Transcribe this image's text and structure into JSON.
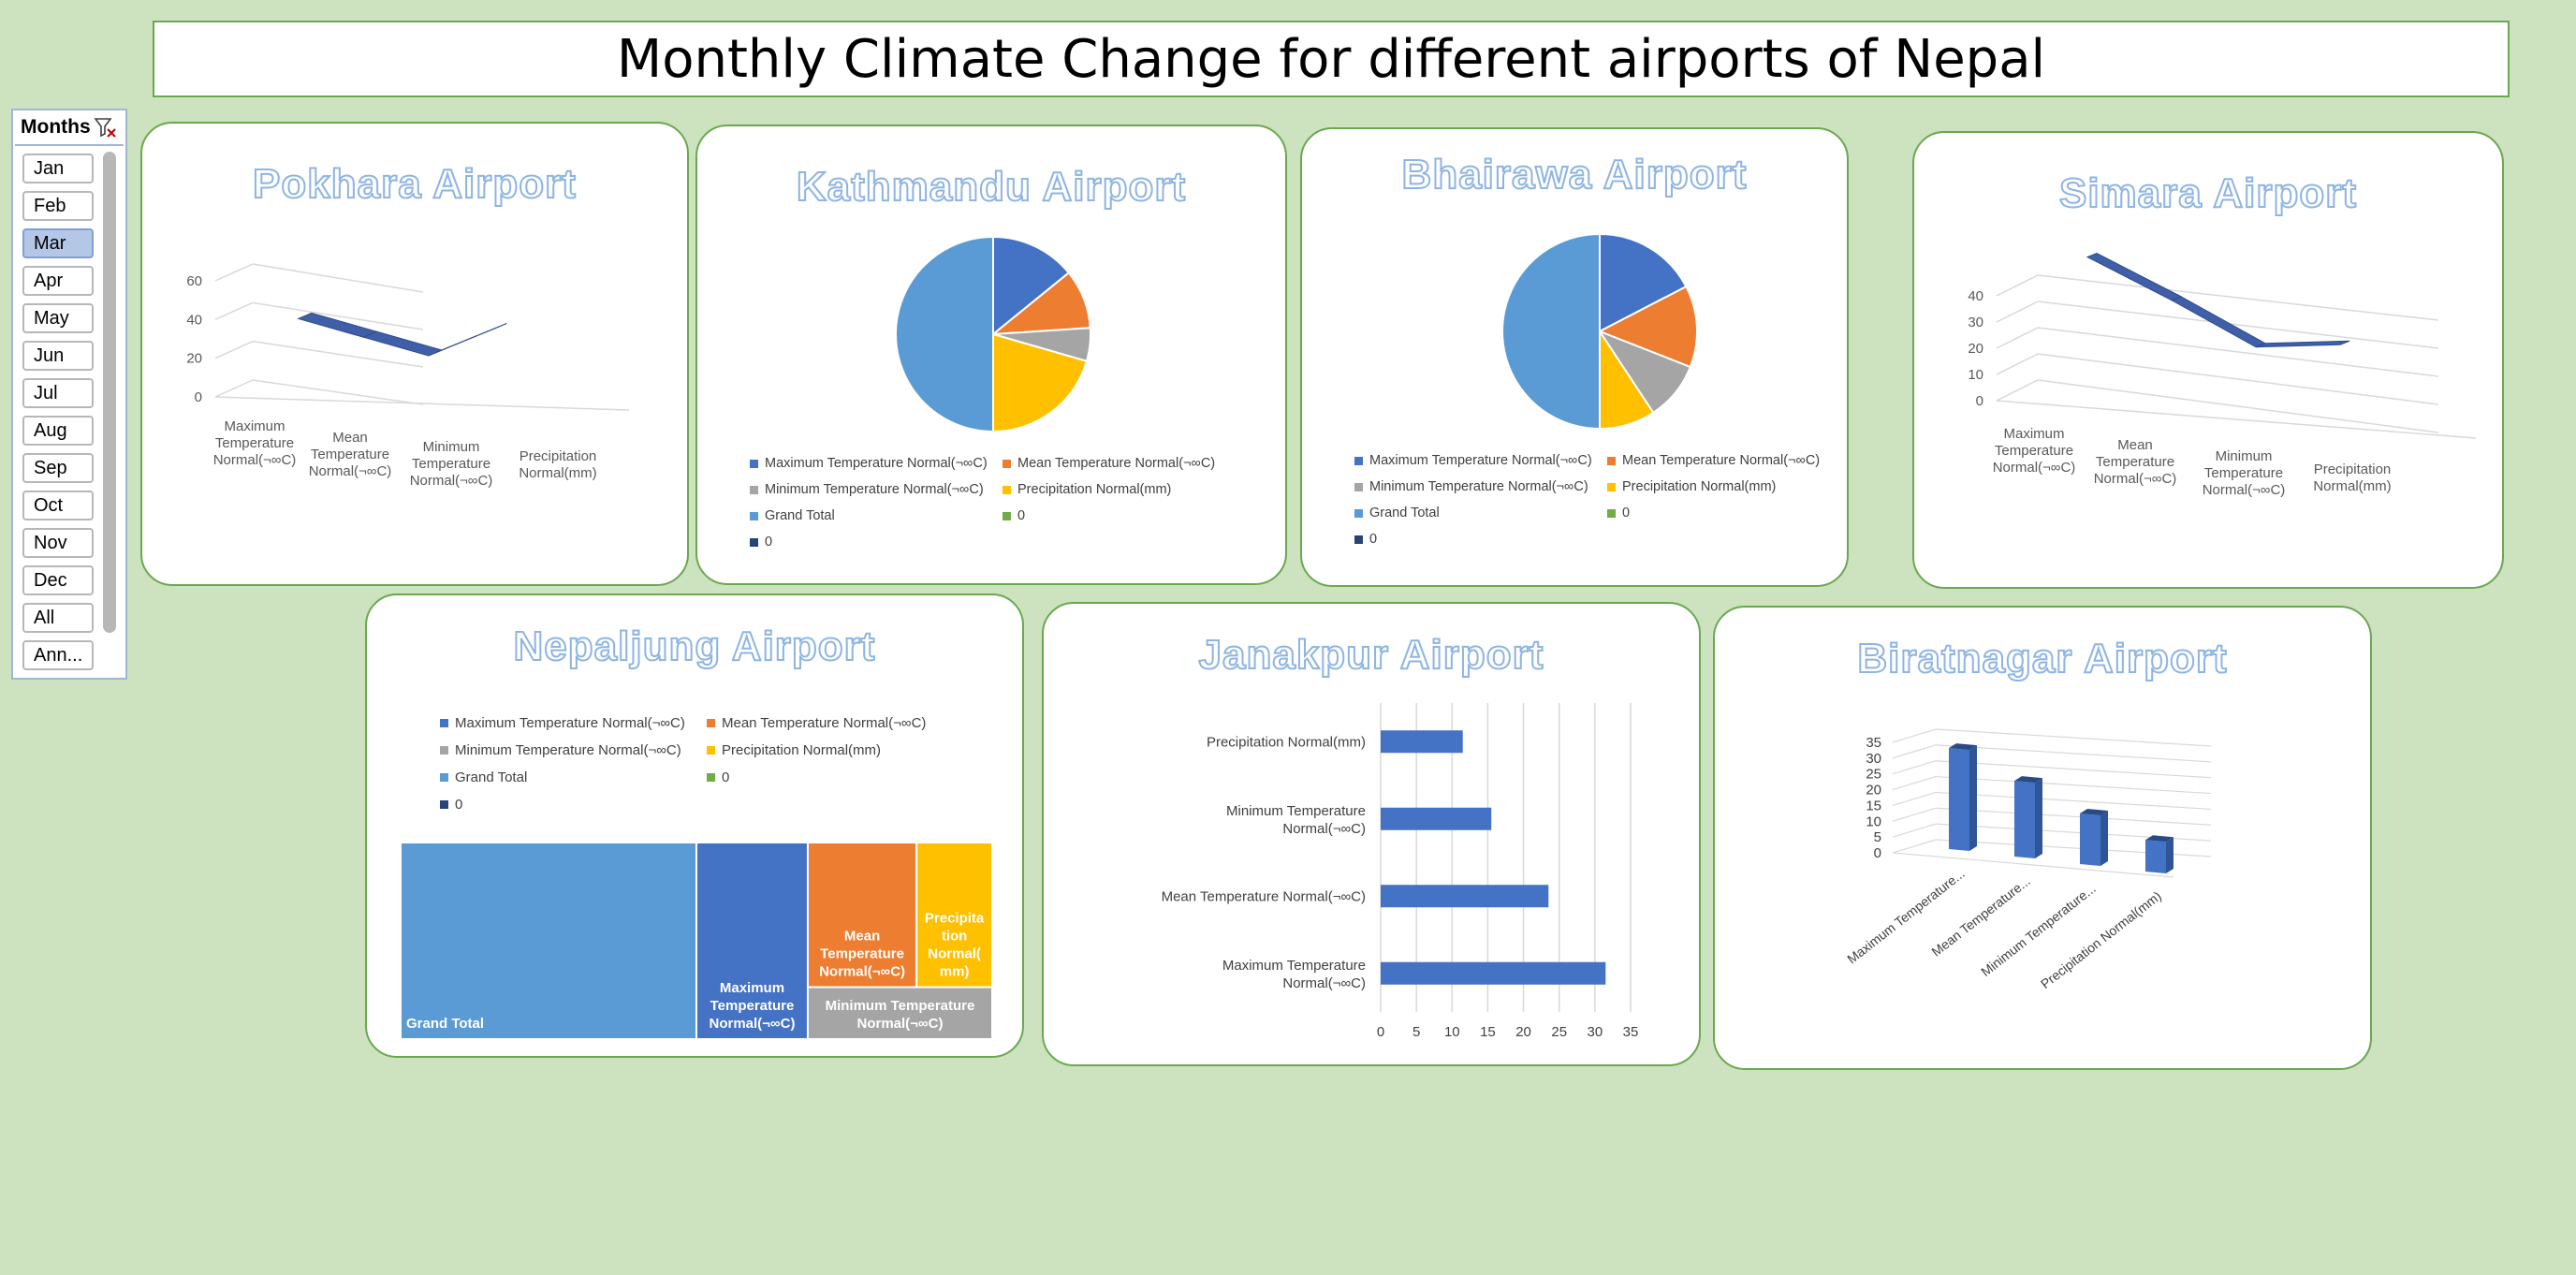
{
  "dashboard_title": "Monthly Climate Change for different airports of Nepal",
  "slicer": {
    "header": "Months",
    "items": [
      "Jan",
      "Feb",
      "Mar",
      "Apr",
      "May",
      "Jun",
      "Jul",
      "Aug",
      "Sep",
      "Oct",
      "Nov",
      "Dec",
      "All",
      "Ann..."
    ],
    "selected": "Mar"
  },
  "colors": {
    "max_temp": "#4472c4",
    "mean_temp": "#ed7d31",
    "min_temp": "#a5a5a5",
    "precip": "#ffc000",
    "grand_total": "#5b9bd5",
    "zero_green": "#70ad47",
    "zero_navy": "#264478"
  },
  "legend_entries": [
    {
      "label": "Maximum Temperature Normal(¬∞C)",
      "color": "#4472c4"
    },
    {
      "label": "Mean Temperature Normal(¬∞C)",
      "color": "#ed7d31"
    },
    {
      "label": "Minimum Temperature Normal(¬∞C)",
      "color": "#a5a5a5"
    },
    {
      "label": "Precipitation Normal(mm)",
      "color": "#ffc000"
    },
    {
      "label": "Grand Total",
      "color": "#5b9bd5"
    },
    {
      "label": "0",
      "color": "#70ad47"
    },
    {
      "label": "0",
      "color": "#264478"
    }
  ],
  "chart_data": [
    {
      "id": "pokhara",
      "type": "line",
      "title": "Pokhara Airport",
      "categories": [
        "Maximum Temperature Normal(¬∞C)",
        "Mean Temperature Normal(¬∞C)",
        "Minimum Temperature Normal(¬∞C)",
        "Precipitation Normal(mm)"
      ],
      "category_labels": [
        [
          "Maximum",
          "Temperature",
          "Normal(¬∞C)"
        ],
        [
          "Mean",
          "Temperature",
          "Normal(¬∞C)"
        ],
        [
          "Minimum",
          "Temperature",
          "Normal(¬∞C)"
        ],
        [
          "Precipitation",
          "Normal(mm)"
        ]
      ],
      "values": [
        27,
        21,
        15,
        55
      ],
      "ylim": [
        0,
        60
      ],
      "yticks": [
        "0",
        "20",
        "40",
        "60"
      ],
      "three_d": true
    },
    {
      "id": "kathmandu",
      "type": "pie",
      "title": "Kathmandu Airport",
      "slices": [
        {
          "label": "Maximum Temperature Normal(¬∞C)",
          "value": 23.9
        },
        {
          "label": "Mean Temperature Normal(¬∞C)",
          "value": 16.6
        },
        {
          "label": "Minimum Temperature Normal(¬∞C)",
          "value": 9.3
        },
        {
          "label": "Precipitation Normal(mm)",
          "value": 34.7
        },
        {
          "label": "Grand Total",
          "value": 84.5
        }
      ],
      "legend": "bottom"
    },
    {
      "id": "bhairawa",
      "type": "pie",
      "title": "Bhairawa Airport",
      "slices": [
        {
          "label": "Maximum Temperature Normal(¬∞C)",
          "value": 32.4
        },
        {
          "label": "Mean Temperature Normal(¬∞C)",
          "value": 25.3
        },
        {
          "label": "Minimum Temperature Normal(¬∞C)",
          "value": 18.2
        },
        {
          "label": "Precipitation Normal(mm)",
          "value": 17.3
        },
        {
          "label": "Grand Total",
          "value": 93.2
        }
      ],
      "legend": "bottom"
    },
    {
      "id": "simara",
      "type": "line",
      "title": "Simara Airport",
      "categories": [
        "Maximum Temperature Normal(¬∞C)",
        "Mean Temperature Normal(¬∞C)",
        "Minimum Temperature Normal(¬∞C)",
        "Precipitation Normal(mm)"
      ],
      "category_labels": [
        [
          "Maximum",
          "Temperature",
          "Normal(¬∞C)"
        ],
        [
          "Mean",
          "Temperature",
          "Normal(¬∞C)"
        ],
        [
          "Minimum",
          "Temperature",
          "Normal(¬∞C)"
        ],
        [
          "Precipitation",
          "Normal(mm)"
        ]
      ],
      "values": [
        33,
        24,
        14,
        18
      ],
      "ylim": [
        0,
        40
      ],
      "yticks": [
        "0",
        "10",
        "20",
        "30",
        "40"
      ],
      "three_d": true
    },
    {
      "id": "nepaljung",
      "type": "treemap",
      "title": "Nepaljung Airport",
      "tiles": [
        {
          "label": "Grand Total",
          "value": 85
        },
        {
          "label": "Maximum Temperature Normal(¬∞C)",
          "value": 32
        },
        {
          "label": "Mean Temperature Normal(¬∞C)",
          "value": 23
        },
        {
          "label": "Precipitation Normal(mm)",
          "value": 16
        },
        {
          "label": "Minimum Temperature Normal(¬∞C)",
          "value": 14
        }
      ],
      "tile_text": [
        [
          "Grand Total"
        ],
        [
          "Maximum",
          "Temperature",
          "Normal(¬∞C)"
        ],
        [
          "Mean",
          "Temperature",
          "Normal(¬∞C)"
        ],
        [
          "Precipita",
          "tion",
          "Normal(",
          "mm)"
        ],
        [
          "Minimum Temperature",
          "Normal(¬∞C)"
        ]
      ],
      "legend": "top"
    },
    {
      "id": "janakpur",
      "type": "bar",
      "orientation": "horizontal",
      "title": "Janakpur Airport",
      "categories": [
        "Maximum Temperature Normal(¬∞C)",
        "Mean Temperature Normal(¬∞C)",
        "Minimum Temperature Normal(¬∞C)",
        "Precipitation Normal(mm)"
      ],
      "category_labels": [
        [
          "Maximum Temperature",
          "Normal(¬∞C)"
        ],
        [
          "Mean Temperature Normal(¬∞C)"
        ],
        [
          "Minimum Temperature",
          "Normal(¬∞C)"
        ],
        [
          "Precipitation Normal(mm)"
        ]
      ],
      "values": [
        31.5,
        23.5,
        15.5,
        11.5
      ],
      "xlim": [
        0,
        35
      ],
      "xticks": [
        "0",
        "5",
        "10",
        "15",
        "20",
        "25",
        "30",
        "35"
      ]
    },
    {
      "id": "biratnagar",
      "type": "bar",
      "orientation": "vertical",
      "three_d": true,
      "title": "Biratnagar Airport",
      "categories": [
        "Maximum Temperature...",
        "Mean Temperature...",
        "Minimum Temperature...",
        "Precipitation Normal(mm)"
      ],
      "values": [
        32,
        24,
        16,
        10
      ],
      "ylim": [
        0,
        35
      ],
      "yticks": [
        "0",
        "5",
        "10",
        "15",
        "20",
        "25",
        "30",
        "35"
      ]
    }
  ]
}
